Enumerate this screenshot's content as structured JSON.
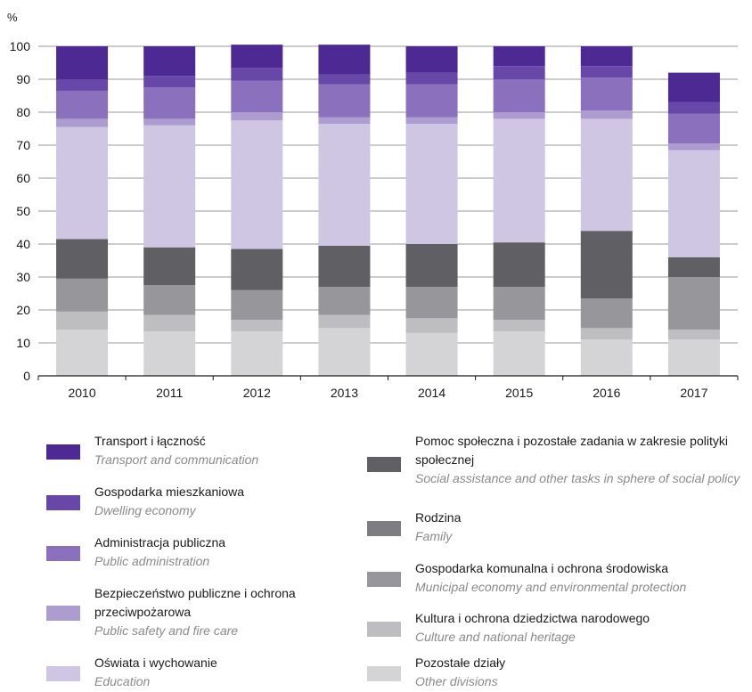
{
  "chart_data": {
    "type": "bar",
    "stacked": true,
    "ylabel": "%",
    "ylim": [
      0,
      100
    ],
    "yticks": [
      0,
      10,
      20,
      30,
      40,
      50,
      60,
      70,
      80,
      90,
      100
    ],
    "grid": true,
    "legend_position": "bottom",
    "categories": [
      "2010",
      "2011",
      "2012",
      "2013",
      "2014",
      "2015",
      "2016",
      "2017"
    ],
    "series": [
      {
        "name": "Pozostałe działy",
        "name_en": "Other divisions",
        "color": "#d4d4d6",
        "values": [
          14,
          13.5,
          13.5,
          14.5,
          13,
          13.5,
          11,
          11
        ]
      },
      {
        "name": "Kultura i ochrona dziedzictwa narodowego",
        "name_en": "Culture and national heritage",
        "color": "#bebec1",
        "values": [
          5.5,
          5,
          3.5,
          4,
          4.5,
          3.5,
          3.5,
          3
        ]
      },
      {
        "name": "Gospodarka komunalna i ochrona środowiska",
        "name_en": "Municipal economy and environmental protection",
        "color": "#96969b",
        "values": [
          10,
          9,
          9,
          8.5,
          9.5,
          10,
          9,
          16
        ]
      },
      {
        "name": "Rodzina",
        "name_en": "Family",
        "color": "#7d7d82",
        "values": [
          0,
          0,
          0,
          0,
          0,
          0,
          0,
          0
        ]
      },
      {
        "name": "Pomoc społeczna i pozostałe zadania w zakresie polityki społecznej",
        "name_en": "Social assistance and other tasks in sphere of social policy",
        "color": "#5f5f64",
        "values": [
          12,
          11.5,
          12.5,
          12.5,
          13,
          13.5,
          20.5,
          6
        ]
      },
      {
        "name": "Oświata i wychowanie",
        "name_en": "Education",
        "color": "#cfc6e4",
        "values": [
          34,
          37,
          39,
          37,
          36.5,
          37.5,
          34,
          32.5
        ]
      },
      {
        "name": "Bezpieczeństwo publiczne i ochrona przeciwpożarowa",
        "name_en": "Public safety and fire care",
        "color": "#ac9ccf",
        "values": [
          2.5,
          2,
          2.5,
          2,
          2,
          2,
          2.5,
          2
        ]
      },
      {
        "name": "Administracja publiczna",
        "name_en": "Public administration",
        "color": "#8a70bd",
        "values": [
          8.5,
          9.5,
          9.5,
          10,
          10,
          10,
          10,
          9
        ]
      },
      {
        "name": "Gospodarka mieszkaniowa",
        "name_en": "Dwelling economy",
        "color": "#6748a9",
        "values": [
          3.5,
          3.5,
          4,
          3,
          3.5,
          4,
          3.5,
          3.5
        ]
      },
      {
        "name": "Transport i łączność",
        "name_en": "Transport and communication",
        "color": "#4d2a93",
        "values": [
          10,
          9,
          7,
          9,
          8,
          6,
          6,
          9
        ]
      }
    ],
    "legend": {
      "left": [
        {
          "pl": "Transport i łączność",
          "en": "Transport and communication",
          "color": "#4d2a93"
        },
        {
          "pl": "Gospodarka mieszkaniowa",
          "en": "Dwelling economy",
          "color": "#6748a9"
        },
        {
          "pl": "Administracja publiczna",
          "en": "Public administration",
          "color": "#8a70bd"
        },
        {
          "pl": "Bezpieczeństwo publiczne i ochrona przeciwpożarowa",
          "en": "Public safety and fire care",
          "color": "#ac9ccf"
        },
        {
          "pl": "Oświata i wychowanie",
          "en": "Education",
          "color": "#cfc6e4"
        }
      ],
      "right": [
        {
          "pl": "Pomoc społeczna i pozostałe zadania w zakresie polityki społecznej",
          "en": "Social assistance and other tasks in sphere of social policy",
          "color": "#5f5f64"
        },
        {
          "pl": "Rodzina",
          "en": "Family",
          "color": "#7d7d82"
        },
        {
          "pl": "Gospodarka komunalna i ochrona środowiska",
          "en": "Municipal economy and environmental protection",
          "color": "#96969b"
        },
        {
          "pl": "Kultura i ochrona dziedzictwa narodowego",
          "en": "Culture and national heritage",
          "color": "#bebec1"
        },
        {
          "pl": "Pozostałe działy",
          "en": "Other divisions",
          "color": "#d4d4d6"
        }
      ]
    }
  }
}
